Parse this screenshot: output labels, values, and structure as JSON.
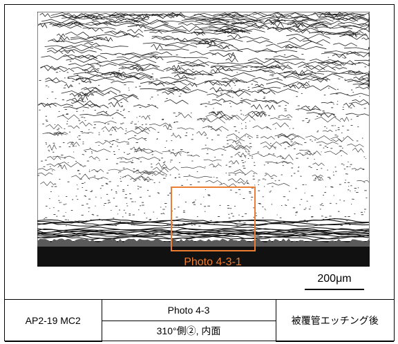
{
  "photo": {
    "callout_label": "Photo 4-3-1",
    "callout_color": "#ED7D31",
    "scalebar_label": "200μm",
    "microstructure": "optical micrograph of etched cladding tube cross-section, hydride striations in upper region, dark mount at bottom edge"
  },
  "info_table": {
    "specimen": "AP2-19 MC2",
    "photo_number": "Photo 4-3",
    "location": "310°側②, 内面",
    "condition": "被覆管エッチング後"
  }
}
